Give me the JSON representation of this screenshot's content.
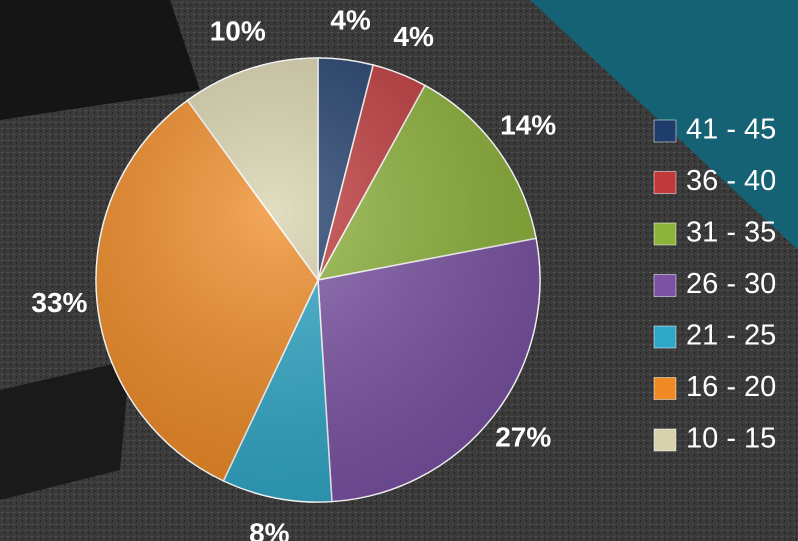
{
  "chart_data": {
    "type": "pie",
    "categories": [
      "41 - 45",
      "36 - 40",
      "31 - 35",
      "26 - 30",
      "21 - 25",
      "16 - 20",
      "10 - 15"
    ],
    "values": [
      4,
      4,
      14,
      27,
      8,
      33,
      10
    ],
    "value_labels": [
      "4%",
      "4%",
      "14%",
      "27%",
      "8%",
      "33%",
      "10%"
    ],
    "colors": [
      "#1f3d6b",
      "#c0393b",
      "#8db33a",
      "#7b52a4",
      "#2fa8c8",
      "#f08a24",
      "#d8d2ac"
    ],
    "legend": "right"
  }
}
